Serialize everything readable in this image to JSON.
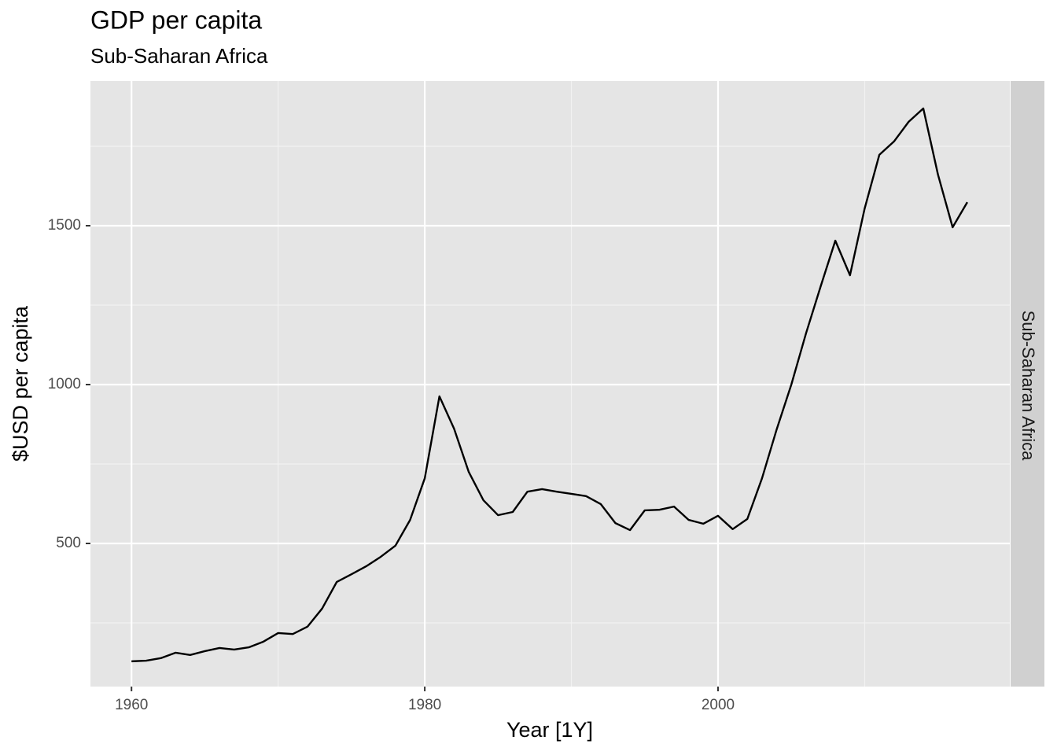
{
  "chart_data": {
    "type": "line",
    "title": "GDP per capita",
    "subtitle": "Sub-Saharan Africa",
    "facet_label": "Sub-Saharan Africa",
    "x_label": "Year [1Y]",
    "y_label": "$USD per capita",
    "x": [
      1960,
      1961,
      1962,
      1963,
      1964,
      1965,
      1966,
      1967,
      1968,
      1969,
      1970,
      1971,
      1972,
      1973,
      1974,
      1975,
      1976,
      1977,
      1978,
      1979,
      1980,
      1981,
      1982,
      1983,
      1984,
      1985,
      1986,
      1987,
      1988,
      1989,
      1990,
      1991,
      1992,
      1993,
      1994,
      1995,
      1996,
      1997,
      1998,
      1999,
      2000,
      2001,
      2002,
      2003,
      2004,
      2005,
      2006,
      2007,
      2008,
      2009,
      2010,
      2011,
      2012,
      2013,
      2014,
      2015,
      2016,
      2017
    ],
    "series": [
      {
        "color": "#000000",
        "values": [
          129,
          131,
          139,
          156,
          149,
          161,
          171,
          166,
          173,
          191,
          218,
          215,
          238,
          295,
          379,
          403,
          428,
          458,
          493,
          574,
          705,
          963,
          861,
          725,
          636,
          589,
          599,
          663,
          671,
          663,
          656,
          649,
          624,
          564,
          542,
          604,
          606,
          616,
          574,
          562,
          587,
          545,
          577,
          705,
          859,
          1000,
          1161,
          1309,
          1453,
          1344,
          1554,
          1723,
          1765,
          1827,
          1869,
          1661,
          1495,
          1574
        ]
      }
    ],
    "xlim": [
      1957.2,
      2019.9
    ],
    "xticks": [
      1960,
      1980,
      2000
    ],
    "xminor": [
      1970,
      1990,
      2010
    ],
    "ylim": [
      49.5,
      1955.4
    ],
    "yticks": [
      500,
      1000,
      1500
    ],
    "yminor": [
      250,
      750,
      1250,
      1750
    ],
    "grid": true
  }
}
